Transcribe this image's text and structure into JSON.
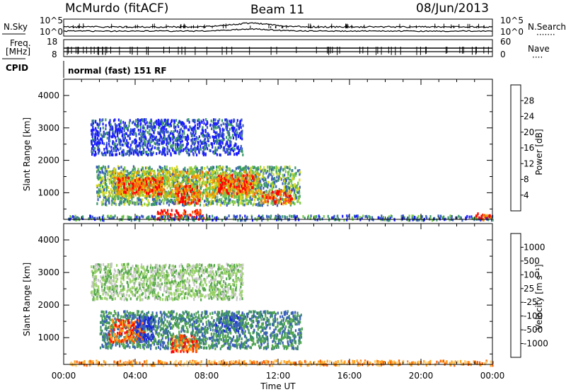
{
  "header": {
    "station": "McMurdo (fitACF)",
    "beam": "Beam 11",
    "date": "08/Jun/2013"
  },
  "strips": {
    "nsky_label": "N.Sky",
    "nsearch_label": "N.Search",
    "nsearch_dots": "·······",
    "noise_ticks_left": [
      "10^5",
      "10^0"
    ],
    "noise_ticks_right": [
      "10^5",
      "10^0"
    ],
    "freq_label_1": "Freq.",
    "freq_label_2": "[MHz]",
    "freq_ticks": [
      "18",
      "8"
    ],
    "nave_label": "Nave",
    "nave_dots": "····",
    "nave_ticks": [
      "60",
      "0"
    ],
    "cpid_label": "CPID",
    "cpid_text": "normal (fast) 151 RF"
  },
  "colors": {
    "power": [
      "#1a1aff",
      "#3a5fb8",
      "#3c9a6a",
      "#7bc84a",
      "#d8d820",
      "#f0a000",
      "#ff6010",
      "#ff0000"
    ],
    "velocity": [
      "#ff0000",
      "#ff6000",
      "#ffa020",
      "#ffd070",
      "#c8c8c8",
      "#9bd36a",
      "#54a84a",
      "#3d8e6e",
      "#3a5fb8",
      "#1a28d8"
    ]
  },
  "chart_data": [
    {
      "type": "heatmap",
      "name": "power",
      "xlabel": "",
      "ylabel": "Slant Range [km]",
      "x_ticks": [
        "00:00",
        "04:00",
        "08:00",
        "12:00",
        "16:00",
        "20:00",
        "00:00"
      ],
      "y_ticks": [
        1000,
        2000,
        3000,
        4000
      ],
      "xlim_hours": [
        0,
        24
      ],
      "ylim_km": [
        180,
        4500
      ],
      "colorbar_label": "Power [dB]",
      "colorbar_ticks": [
        4,
        8,
        12,
        16,
        20,
        24,
        28
      ],
      "colorbar_range": [
        0,
        30
      ],
      "regions": [
        {
          "t0": 1.8,
          "t1": 13.2,
          "r0": 650,
          "r1": 1850,
          "level": 0.35
        },
        {
          "t0": 2.5,
          "t1": 11.0,
          "r0": 900,
          "r1": 1700,
          "level": 0.55
        },
        {
          "t0": 3.0,
          "t1": 5.5,
          "r0": 1000,
          "r1": 1500,
          "level": 0.85
        },
        {
          "t0": 6.2,
          "t1": 7.6,
          "r0": 700,
          "r1": 1250,
          "level": 0.9
        },
        {
          "t0": 8.6,
          "t1": 10.6,
          "r0": 1000,
          "r1": 1600,
          "level": 0.85
        },
        {
          "t0": 11.0,
          "t1": 12.8,
          "r0": 700,
          "r1": 1100,
          "level": 0.8
        },
        {
          "t0": 5.2,
          "t1": 7.8,
          "r0": 220,
          "r1": 500,
          "level": 0.95
        },
        {
          "t0": 1.5,
          "t1": 10.0,
          "r0": 2200,
          "r1": 3300,
          "level": 0.12
        },
        {
          "t0": 0.2,
          "t1": 24.0,
          "r0": 190,
          "r1": 330,
          "level": 0.25
        },
        {
          "t0": 23.0,
          "t1": 24.0,
          "r0": 190,
          "r1": 400,
          "level": 0.85
        }
      ]
    },
    {
      "type": "heatmap",
      "name": "velocity",
      "xlabel": "Time UT",
      "ylabel": "Slant Range [km]",
      "x_ticks": [
        "00:00",
        "04:00",
        "08:00",
        "12:00",
        "16:00",
        "20:00",
        "00:00"
      ],
      "y_ticks": [
        1000,
        2000,
        3000,
        4000
      ],
      "xlim_hours": [
        0,
        24
      ],
      "ylim_km": [
        180,
        4500
      ],
      "colorbar_label": "Velocity [m s⁻¹]",
      "colorbar_ticks": [
        "-1000",
        "-500",
        "-100",
        "-25",
        "25",
        "100",
        "500",
        "1000"
      ],
      "regions": [
        {
          "t0": 2.0,
          "t1": 13.3,
          "r0": 700,
          "r1": 1850,
          "level": 7
        },
        {
          "t0": 2.5,
          "t1": 4.5,
          "r0": 900,
          "r1": 1600,
          "level": 1
        },
        {
          "t0": 4.0,
          "t1": 5.0,
          "r0": 900,
          "r1": 1700,
          "level": 9
        },
        {
          "t0": 6.0,
          "t1": 7.5,
          "r0": 600,
          "r1": 1100,
          "level": 1
        },
        {
          "t0": 8.5,
          "t1": 10.0,
          "r0": 1200,
          "r1": 1800,
          "level": 8
        },
        {
          "t0": 1.5,
          "t1": 10.0,
          "r0": 2200,
          "r1": 3300,
          "level": 5
        },
        {
          "t0": 0.2,
          "t1": 24.0,
          "r0": 190,
          "r1": 330,
          "level": 2
        }
      ]
    }
  ]
}
